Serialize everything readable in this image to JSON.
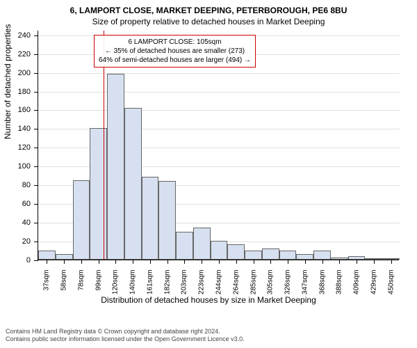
{
  "title": "6, LAMPORT CLOSE, MARKET DEEPING, PETERBOROUGH, PE6 8BU",
  "subtitle": "Size of property relative to detached houses in Market Deeping",
  "ylabel": "Number of detached properties",
  "xlabel": "Distribution of detached houses by size in Market Deeping",
  "chart": {
    "type": "histogram",
    "ylim": [
      0,
      245
    ],
    "ytick_step": 20,
    "bar_color": "#d6e0f0",
    "bar_border": "#666666",
    "grid_color": "#e0e0e0",
    "reference_line_color": "#cc0000",
    "reference_line_x": 105,
    "x_bin_start": 27,
    "x_bin_width": 20.65,
    "x_bin_count": 21,
    "values": [
      10,
      6,
      85,
      140,
      198,
      162,
      88,
      84,
      30,
      34,
      20,
      16,
      10,
      12,
      10,
      6,
      10,
      2,
      4,
      1,
      1
    ],
    "x_tick_labels": [
      "37sqm",
      "58sqm",
      "78sqm",
      "99sqm",
      "120sqm",
      "140sqm",
      "161sqm",
      "182sqm",
      "203sqm",
      "223sqm",
      "244sqm",
      "264sqm",
      "285sqm",
      "305sqm",
      "326sqm",
      "347sqm",
      "368sqm",
      "388sqm",
      "409sqm",
      "429sqm",
      "450sqm"
    ]
  },
  "annotation": {
    "line1": "6 LAMPORT CLOSE: 105sqm",
    "line2": "← 35% of detached houses are smaller (273)",
    "line3": "64% of semi-detached houses are larger (494) →"
  },
  "footnote1": "Contains HM Land Registry data © Crown copyright and database right 2024.",
  "footnote2": "Contains public sector information licensed under the Open Government Licence v3.0."
}
